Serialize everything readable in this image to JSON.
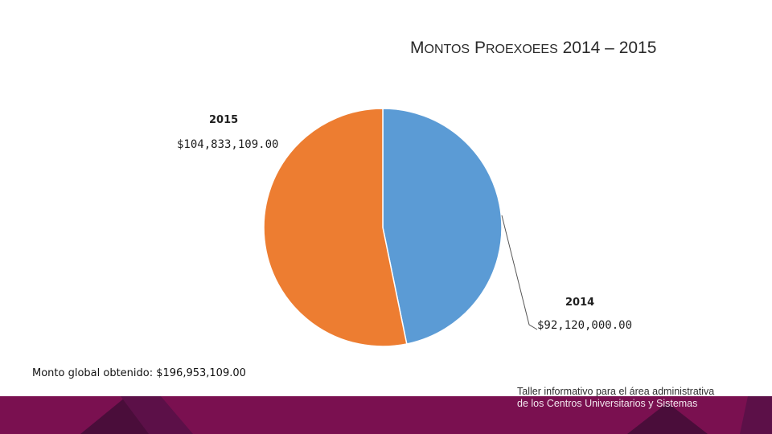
{
  "slide": {
    "title_cap1": "M",
    "title_word1_rest": "ontos",
    "title_cap2": "P",
    "title_word2_rest": "roexoees",
    "title_years": "2014 – 2015",
    "footer_note": "Monto global obtenido: $196,953,109.00",
    "caption_line1": "Taller informativo para el área administrativa",
    "caption_line2": "de los Centros Universitarios y Sistemas"
  },
  "colors": {
    "slice_2014": "#5b9bd5",
    "slice_2015": "#ed7d31",
    "band": "#7a1050",
    "band_dark": "#4a0d3a"
  },
  "chart_data": {
    "type": "pie",
    "title": "MONTOS PROEXOEES 2014 – 2015",
    "slices": [
      {
        "label": "2014",
        "value": 92120000,
        "value_label": "$92,120,000.00",
        "color": "#5b9bd5"
      },
      {
        "label": "2015",
        "value": 104833109,
        "value_label": "$104,833,109.00",
        "color": "#ed7d31"
      }
    ],
    "start_angle_deg": 0,
    "direction": "clockwise",
    "legend": "none"
  }
}
